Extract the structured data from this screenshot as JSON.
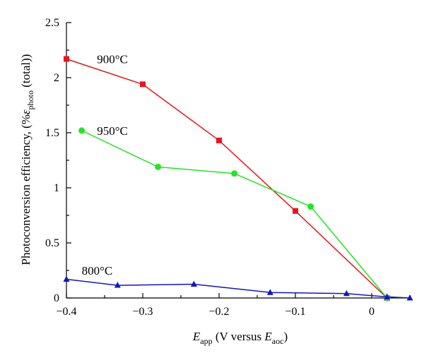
{
  "chart_data": {
    "type": "line",
    "title": "",
    "xlabel": {
      "prefix": "E",
      "prefix_sub": "app",
      "middle": " (V versus ",
      "suffix_var": "E",
      "suffix_sub": "aoc",
      "end": ")"
    },
    "ylabel": {
      "text_before": "Photoconversion efficiency, (%",
      "var": "ε",
      "var_sub": "photo",
      "text_after": " (total))"
    },
    "xlim": [
      -0.4,
      0.05
    ],
    "ylim": [
      0,
      2.5
    ],
    "xticks": [
      -0.4,
      -0.3,
      -0.2,
      -0.1,
      0
    ],
    "xtick_labels": [
      "−0.4",
      "−0.3",
      "−0.2",
      "−0.1",
      "0"
    ],
    "yticks": [
      0,
      0.5,
      1,
      1.5,
      2,
      2.5
    ],
    "ytick_labels": [
      "0",
      "0.5",
      "1",
      "1.5",
      "2",
      "2.5"
    ],
    "grid": false,
    "series": [
      {
        "name": "900°C",
        "color": "#e8141c",
        "marker": "square",
        "x": [
          -0.4,
          -0.3,
          -0.2,
          -0.1,
          0.02
        ],
        "y": [
          2.17,
          1.94,
          1.43,
          0.79,
          0.0
        ],
        "label_at": [
          -0.36,
          2.17
        ]
      },
      {
        "name": "950°C",
        "color": "#1ee81e",
        "marker": "circle",
        "x": [
          -0.38,
          -0.28,
          -0.18,
          -0.08,
          0.02
        ],
        "y": [
          1.52,
          1.19,
          1.13,
          0.83,
          0.0
        ],
        "label_at": [
          -0.36,
          1.52
        ]
      },
      {
        "name": "800°C",
        "color": "#1414c8",
        "marker": "triangle",
        "x": [
          -0.4,
          -0.333,
          -0.233,
          -0.133,
          -0.033,
          0.02,
          0.05
        ],
        "y": [
          0.17,
          0.115,
          0.125,
          0.05,
          0.04,
          0.01,
          0.0
        ],
        "label_at": [
          -0.38,
          0.25
        ]
      }
    ]
  }
}
